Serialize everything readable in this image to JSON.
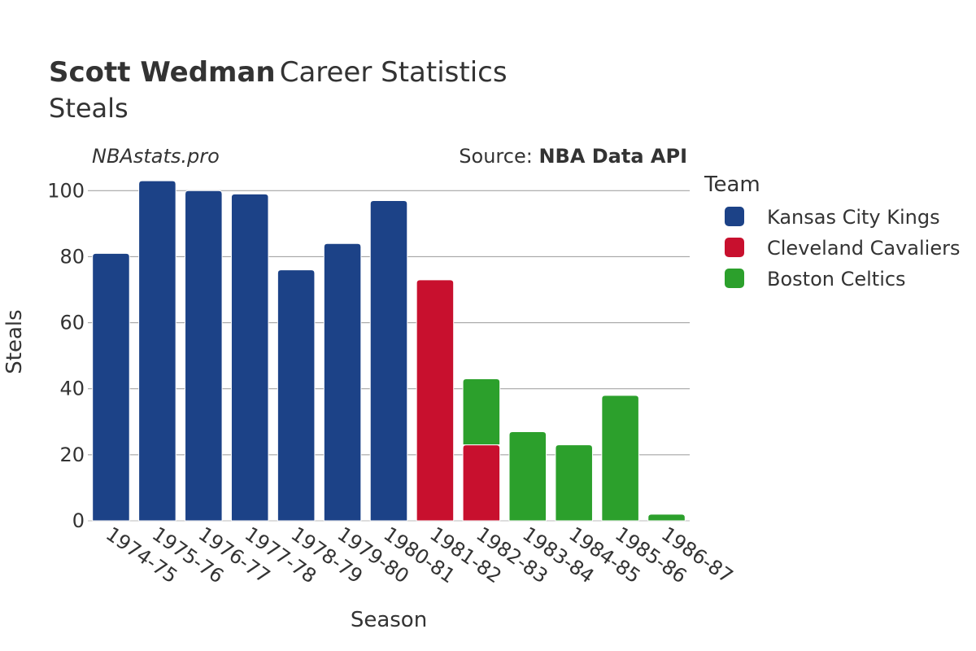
{
  "header": {
    "title_bold": "Scott Wedman",
    "title_rest": "Career Statistics",
    "subtitle": "Steals",
    "watermark": "NBAstats.pro",
    "source_prefix": "Source: ",
    "source_name": "NBA Data API"
  },
  "legend": {
    "title": "Team"
  },
  "chart_data": {
    "type": "bar",
    "stacked": true,
    "xlabel": "Season",
    "ylabel": "Steals",
    "ylim": [
      0,
      105
    ],
    "yticks": [
      0,
      20,
      40,
      60,
      80,
      100
    ],
    "grid": true,
    "legend_position": "right",
    "categories": [
      "1974-75",
      "1975-76",
      "1976-77",
      "1977-78",
      "1978-79",
      "1979-80",
      "1980-81",
      "1981-82",
      "1982-83",
      "1983-84",
      "1984-85",
      "1985-86",
      "1986-87"
    ],
    "series": [
      {
        "name": "Kansas City Kings",
        "color": "#1c4287",
        "values": [
          81,
          103,
          100,
          99,
          76,
          84,
          97,
          0,
          0,
          0,
          0,
          0,
          0
        ]
      },
      {
        "name": "Cleveland Cavaliers",
        "color": "#c8102e",
        "values": [
          0,
          0,
          0,
          0,
          0,
          0,
          0,
          73,
          23,
          0,
          0,
          0,
          0
        ]
      },
      {
        "name": "Boston Celtics",
        "color": "#2ca02c",
        "values": [
          0,
          0,
          0,
          0,
          0,
          0,
          0,
          0,
          20,
          27,
          23,
          38,
          2
        ]
      }
    ]
  }
}
